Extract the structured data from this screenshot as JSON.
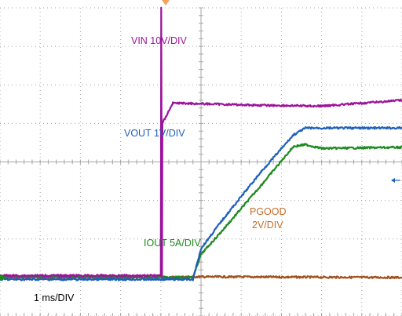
{
  "colors": {
    "grid": "#a6a6a6",
    "background": "#ffffff",
    "vin": "#9b139b",
    "vout": "#1f5fbf",
    "iout": "#1e8a1e",
    "pgood": "#a0521e",
    "marker_trigger": "#f5a25d",
    "marker_ch": "#1c8c1c",
    "marker_arrow": "#1f5fbf"
  },
  "icons": {
    "trigger_marker": "triangle-down-icon",
    "ground_marker": "arrow-right-icon",
    "level_marker": "arrow-left-icon"
  },
  "chart_data": {
    "type": "line",
    "title": "",
    "xlabel": "",
    "ylabel": "",
    "timebase": "1 ms/DIV",
    "x_divisions": 10,
    "y_divisions": 8,
    "xlim": [
      0,
      10
    ],
    "ylim": [
      -4,
      4
    ],
    "grid": true,
    "legend": "none",
    "series": [
      {
        "name": "VIN 10V/DIV",
        "label_lines": [
          "VIN 10V/DIV"
        ],
        "color": "#9b139b",
        "points": [
          [
            0,
            -2.95
          ],
          [
            4.0,
            -2.95
          ],
          [
            4.01,
            4.0
          ],
          [
            4.03,
            -2.95
          ],
          [
            4.04,
            1.0
          ],
          [
            4.3,
            1.53
          ],
          [
            6.5,
            1.47
          ],
          [
            8.0,
            1.45
          ],
          [
            10.0,
            1.6
          ]
        ]
      },
      {
        "name": "VOUT 1V/DIV",
        "label_lines": [
          "VOUT 1V/DIV"
        ],
        "color": "#1f5fbf",
        "points": [
          [
            0,
            -3.05
          ],
          [
            4.8,
            -3.05
          ],
          [
            5.0,
            -2.25
          ],
          [
            5.5,
            -1.55
          ],
          [
            6.5,
            -0.25
          ],
          [
            7.3,
            0.7
          ],
          [
            7.6,
            0.88
          ],
          [
            10.0,
            0.88
          ]
        ]
      },
      {
        "name": "IOUT 5A/DIV",
        "label_lines": [
          "IOUT 5A/DIV"
        ],
        "color": "#1e8a1e",
        "points": [
          [
            0,
            -2.97
          ],
          [
            4.8,
            -3.0
          ],
          [
            5.0,
            -2.4
          ],
          [
            5.5,
            -1.82
          ],
          [
            6.5,
            -0.6
          ],
          [
            7.3,
            0.4
          ],
          [
            7.6,
            0.45
          ],
          [
            8.0,
            0.35
          ],
          [
            10.0,
            0.38
          ]
        ]
      },
      {
        "name": "PGOOD 2V/DIV",
        "label_lines": [
          "PGOOD",
          "2V/DIV"
        ],
        "color": "#a0521e",
        "points": [
          [
            0,
            -3.0
          ],
          [
            4.05,
            -3.0
          ],
          [
            4.7,
            -2.98
          ],
          [
            10.0,
            -3.0
          ]
        ]
      }
    ]
  }
}
